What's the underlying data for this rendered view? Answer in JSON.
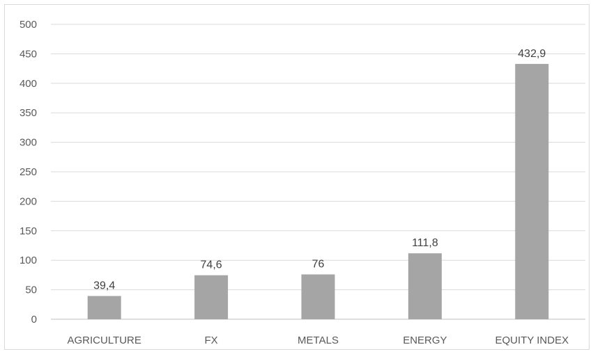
{
  "chart_data": {
    "type": "bar",
    "categories": [
      "AGRICULTURE",
      "FX",
      "METALS",
      "ENERGY",
      "EQUITY INDEX"
    ],
    "values": [
      39.4,
      74.6,
      76,
      111.8,
      432.9
    ],
    "data_labels": [
      "39,4",
      "74,6",
      "76",
      "111,8",
      "432,9"
    ],
    "ylim": [
      0,
      500
    ],
    "yticks": [
      0,
      50,
      100,
      150,
      200,
      250,
      300,
      350,
      400,
      450,
      500
    ],
    "grid": true,
    "bar_color": "#a5a5a5",
    "title": "",
    "xlabel": "",
    "ylabel": ""
  }
}
